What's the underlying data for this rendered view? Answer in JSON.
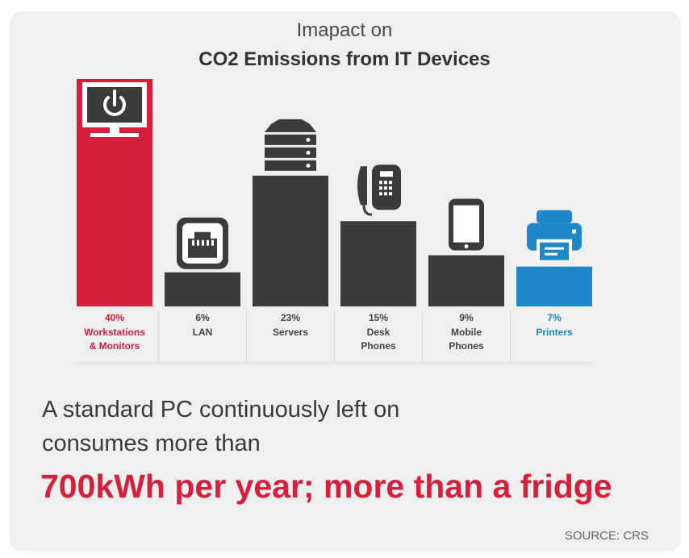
{
  "header": {
    "title_line1": "Imapact on",
    "title_line2": "CO2 Emissions from IT Devices"
  },
  "chart_data": {
    "type": "bar",
    "categories": [
      "Workstations & Monitors",
      "LAN",
      "Servers",
      "Desk Phones",
      "Mobile Phones",
      "Printers"
    ],
    "values": [
      40,
      6,
      23,
      15,
      9,
      7
    ],
    "value_labels": [
      "40%",
      "6%",
      "23%",
      "15%",
      "9%",
      "7%"
    ],
    "label_lines": [
      [
        "Workstations",
        "& Monitors"
      ],
      [
        "LAN"
      ],
      [
        "Servers"
      ],
      [
        "Desk",
        "Phones"
      ],
      [
        "Mobile",
        "Phones"
      ],
      [
        "Printers"
      ]
    ],
    "icons": [
      "monitor-power-icon",
      "ethernet-port-icon",
      "server-stack-icon",
      "desk-phone-icon",
      "mobile-phone-icon",
      "printer-icon"
    ],
    "colors": [
      "#d71f3b",
      "#3b3b3b",
      "#3b3b3b",
      "#3b3b3b",
      "#3b3b3b",
      "#1e87c8"
    ],
    "label_colors": [
      "#d71f3b",
      "#444444",
      "#444444",
      "#444444",
      "#444444",
      "#1e87c8"
    ]
  },
  "footer": {
    "line1": "A standard PC continuously left on",
    "line2": "consumes more than",
    "highlight": "700kWh per year; more than a fridge",
    "source": "SOURCE: CRS"
  }
}
